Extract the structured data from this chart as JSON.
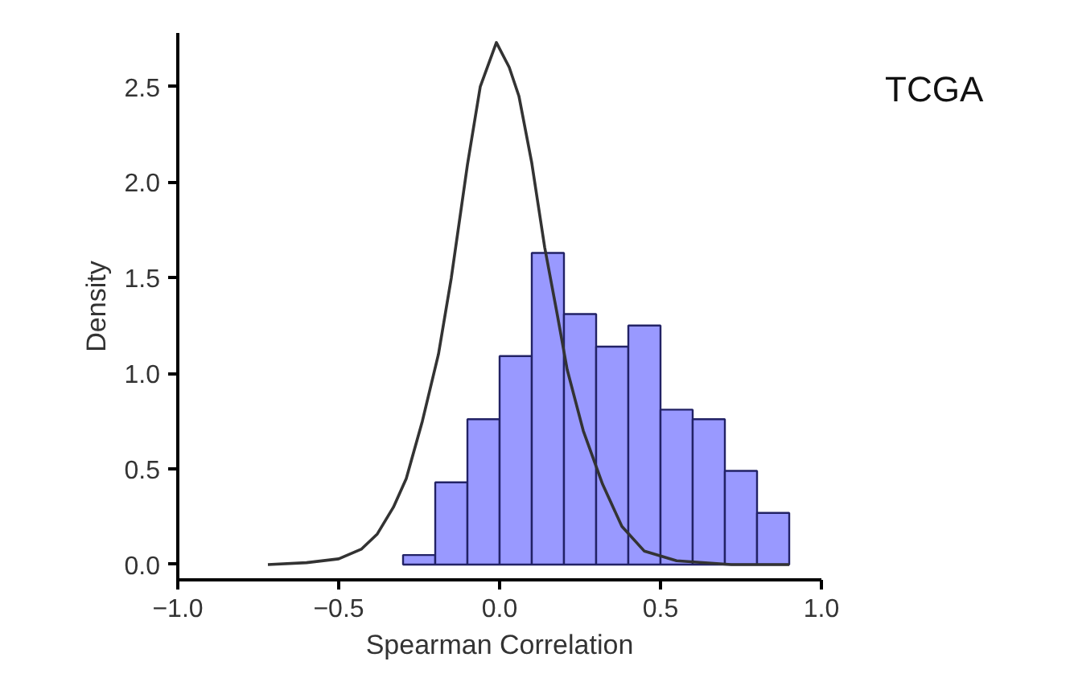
{
  "chart_data": {
    "type": "histogram",
    "xlabel": "Spearman Correlation",
    "ylabel": "Density",
    "annotations": [
      "TCGA"
    ],
    "bins": [
      -0.3,
      -0.2,
      -0.1,
      0.0,
      0.1,
      0.2,
      0.3,
      0.4,
      0.5,
      0.6,
      0.7,
      0.8,
      0.9
    ],
    "values": [
      0.05,
      0.43,
      0.76,
      1.09,
      1.63,
      1.31,
      1.14,
      1.25,
      0.81,
      0.76,
      0.49,
      0.27
    ],
    "color": "#9999ff",
    "series": [
      {
        "type": "line",
        "color": "#333333",
        "x": [
          -0.72,
          -0.6,
          -0.5,
          -0.43,
          -0.38,
          -0.33,
          -0.29,
          -0.24,
          -0.19,
          -0.15,
          -0.1,
          -0.06,
          -0.01,
          0.03,
          0.06,
          0.1,
          0.14,
          0.18,
          0.21,
          0.26,
          0.32,
          0.38,
          0.45,
          0.55,
          0.72,
          0.9
        ],
        "values": [
          0.0,
          0.01,
          0.03,
          0.08,
          0.16,
          0.3,
          0.45,
          0.75,
          1.1,
          1.5,
          2.09,
          2.5,
          2.73,
          2.6,
          2.45,
          2.1,
          1.66,
          1.3,
          1.02,
          0.7,
          0.42,
          0.2,
          0.07,
          0.02,
          0.0,
          0.0
        ]
      }
    ],
    "xlim": [
      -1.0,
      1.0
    ],
    "ylim": [
      -0.08,
      2.78
    ],
    "xticks": [
      {
        "value": -1,
        "label": "−1.0"
      },
      -0.5,
      {
        "value": 0,
        "label": "0.0"
      },
      0.5,
      {
        "value": 1,
        "label": "1.0"
      }
    ],
    "yticks": [
      {
        "value": 0,
        "label": "0.0"
      },
      0.5,
      {
        "value": 1,
        "label": "1.0"
      },
      1.5,
      {
        "value": 2,
        "label": "2.0"
      },
      2.5
    ],
    "grid": false
  }
}
